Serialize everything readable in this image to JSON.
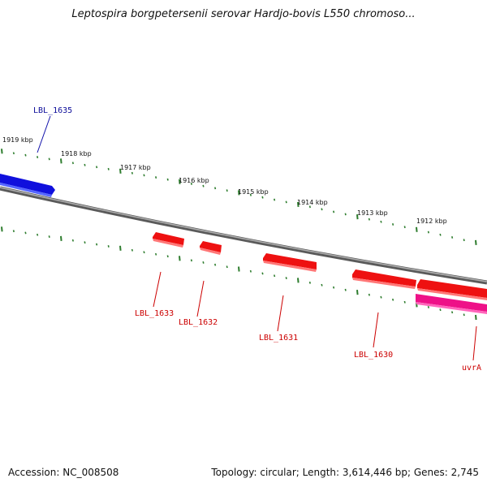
{
  "title": "Leptospira borgpetersenii serovar Hardjo-bovis L550 chromoso...",
  "footer": {
    "accession": "Accession: NC_008508",
    "summary": "Topology: circular; Length: 3,614,446 bp; Genes: 2,745"
  },
  "colors": {
    "forward_gene": "#1010dd",
    "reverse_gene": "#ee1111",
    "rna_gene": "#ee1188",
    "backbone": "#808080",
    "ticks": "#2e7d2e"
  },
  "tick_labels": [
    "1919 kbp",
    "1918 kbp",
    "1917 kbp",
    "1916 kbp",
    "1915 kbp",
    "1914 kbp",
    "1913 kbp",
    "1912 kbp"
  ],
  "genes": [
    {
      "name": "LBL_1635",
      "strand": "forward"
    },
    {
      "name": "LBL_1633",
      "strand": "reverse"
    },
    {
      "name": "LBL_1632",
      "strand": "reverse"
    },
    {
      "name": "LBL_1631",
      "strand": "reverse"
    },
    {
      "name": "LBL_1630",
      "strand": "reverse"
    },
    {
      "name": "uvrA",
      "strand": "reverse"
    }
  ]
}
